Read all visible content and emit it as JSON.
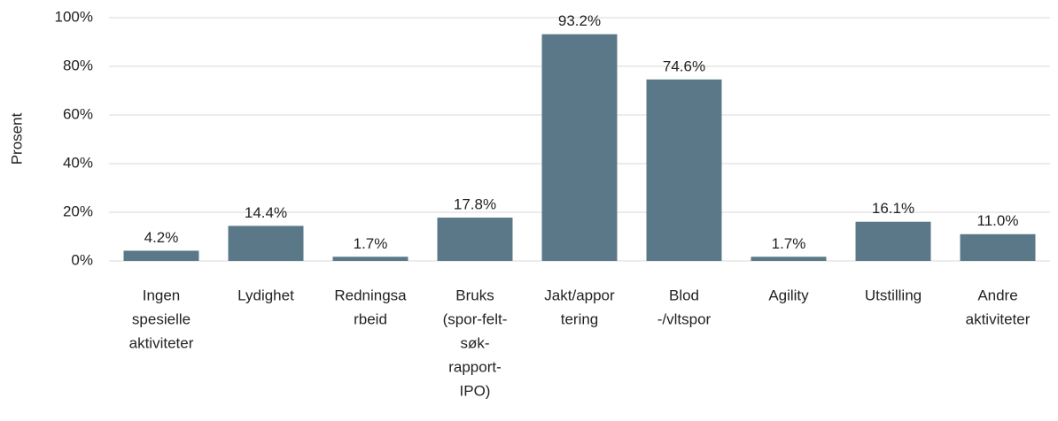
{
  "chart_data": {
    "type": "bar",
    "y_label": "Prosent",
    "categories": [
      [
        "Ingen",
        "spesielle",
        "aktiviteter"
      ],
      [
        "Lydighet"
      ],
      [
        "Redningsa",
        "rbeid"
      ],
      [
        "Bruks",
        "(spor-felt-",
        "søk-",
        "rapport-",
        "IPO)"
      ],
      [
        "Jakt/appor",
        "tering"
      ],
      [
        "Blod",
        "-/vltspor"
      ],
      [
        "Agility"
      ],
      [
        "Utstilling"
      ],
      [
        "Andre",
        "aktiviteter"
      ]
    ],
    "values": [
      4.2,
      14.4,
      1.7,
      17.8,
      93.2,
      74.6,
      1.7,
      16.1,
      11.0
    ],
    "value_labels": [
      "4.2%",
      "14.4%",
      "1.7%",
      "17.8%",
      "93.2%",
      "74.6%",
      "1.7%",
      "16.1%",
      "11.0%"
    ],
    "color": "#5a7887",
    "ylim": [
      0,
      100
    ],
    "yticks": [
      {
        "value": 0,
        "label": "0%"
      },
      {
        "value": 20,
        "label": "20%"
      },
      {
        "value": 40,
        "label": "40%"
      },
      {
        "value": 60,
        "label": "60%"
      },
      {
        "value": 80,
        "label": "80%"
      },
      {
        "value": 100,
        "label": "100%"
      }
    ],
    "grid": true
  }
}
